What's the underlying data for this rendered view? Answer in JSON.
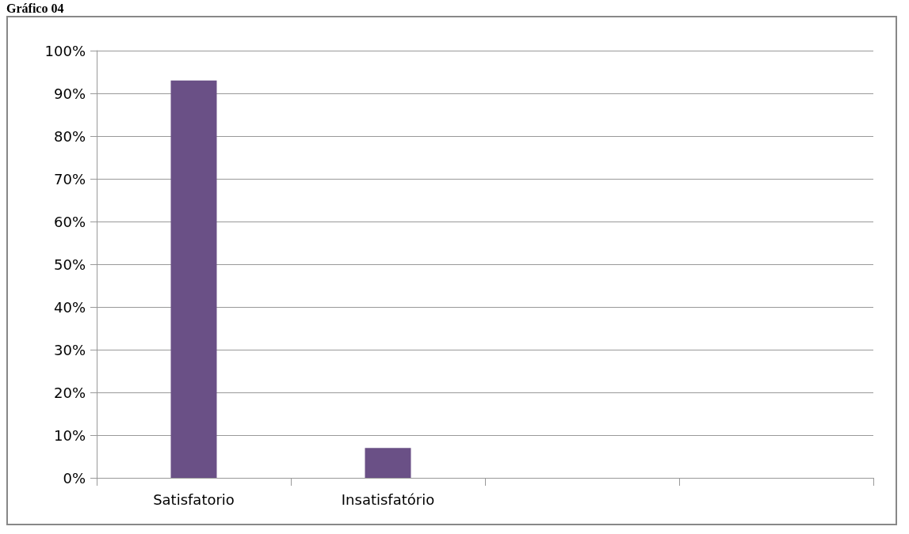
{
  "chart_data": {
    "type": "bar",
    "title": "Gráfico 04",
    "categories": [
      "Satisfatorio",
      "Insatisfatório",
      null,
      null
    ],
    "values": [
      93,
      7,
      null,
      null
    ],
    "color": "#6a5086",
    "ylim": [
      0,
      100
    ],
    "yticks": [
      {
        "value": 0,
        "label": "0%"
      },
      {
        "value": 10,
        "label": "10%"
      },
      {
        "value": 20,
        "label": "20%"
      },
      {
        "value": 30,
        "label": "30%"
      },
      {
        "value": 40,
        "label": "40%"
      },
      {
        "value": 50,
        "label": "50%"
      },
      {
        "value": 60,
        "label": "60%"
      },
      {
        "value": 70,
        "label": "70%"
      },
      {
        "value": 80,
        "label": "80%"
      },
      {
        "value": 90,
        "label": "90%"
      },
      {
        "value": 100,
        "label": "100%"
      }
    ],
    "grid": "y"
  }
}
